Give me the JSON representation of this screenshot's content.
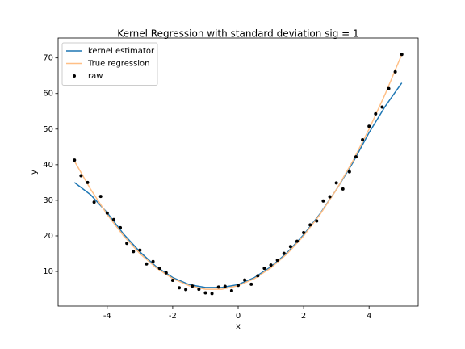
{
  "chart_data": {
    "type": "line",
    "title": "Kernel Regression with standard deviation sig = 1",
    "xlabel": "x",
    "ylabel": "y",
    "xlim": [
      -5.5,
      5.5
    ],
    "ylim": [
      0.25,
      75.6
    ],
    "xticks": [
      -4,
      -2,
      0,
      2,
      4
    ],
    "yticks": [
      10,
      20,
      30,
      40,
      50,
      60,
      70
    ],
    "legend": "upper left",
    "series": [
      {
        "name": "kernel estimator",
        "type": "line",
        "color": "#1f77b4",
        "x": [
          -5,
          -4.5,
          -4,
          -3.5,
          -3,
          -2.5,
          -2,
          -1.5,
          -1,
          -0.5,
          0,
          0.5,
          1,
          1.5,
          2,
          2.5,
          3,
          3.5,
          4,
          4.5,
          5
        ],
        "values": [
          35,
          31.5,
          26.5,
          20.5,
          15.5,
          11.3,
          8.3,
          6.3,
          5.5,
          5.5,
          6.3,
          8.3,
          11.3,
          15.3,
          20.3,
          26.2,
          33,
          40.5,
          49,
          56.5,
          63
        ]
      },
      {
        "name": "True regression",
        "type": "line",
        "color": "#ffbf86",
        "x": [
          -5,
          -4.5,
          -4,
          -3.5,
          -3,
          -2.5,
          -2,
          -1.5,
          -1,
          -0.5,
          0,
          0.5,
          1,
          1.5,
          2,
          2.5,
          3,
          3.5,
          4,
          4.5,
          5
        ],
        "values": [
          41,
          33,
          26,
          20,
          15,
          11,
          8,
          6,
          5,
          5,
          6,
          8,
          11,
          15,
          20,
          26,
          33,
          41,
          50,
          60,
          71
        ]
      },
      {
        "name": "raw",
        "type": "scatter",
        "color": "#000000",
        "x": [
          -5,
          -4.8,
          -4.6,
          -4.4,
          -4.2,
          -4,
          -3.8,
          -3.6,
          -3.4,
          -3.2,
          -3,
          -2.8,
          -2.6,
          -2.4,
          -2.2,
          -2,
          -1.8,
          -1.6,
          -1.4,
          -1.2,
          -1,
          -0.8,
          -0.6,
          -0.4,
          -0.2,
          0,
          0.2,
          0.4,
          0.6,
          0.8,
          1,
          1.2,
          1.4,
          1.6,
          1.8,
          2,
          2.2,
          2.4,
          2.6,
          2.8,
          3,
          3.2,
          3.4,
          3.6,
          3.8,
          4,
          4.2,
          4.4,
          4.6,
          4.8,
          5
        ],
        "values": [
          41.3,
          36.9,
          35,
          29.5,
          31.1,
          26.4,
          24.6,
          22.3,
          17.9,
          15.6,
          16,
          12.1,
          12.8,
          10.9,
          9.6,
          7.5,
          5.4,
          4.9,
          5.9,
          5,
          4,
          3.8,
          5.6,
          5.8,
          4.6,
          6.1,
          7.6,
          6.4,
          8.8,
          10.9,
          11.8,
          13.2,
          15.1,
          17,
          18.5,
          20.9,
          23.1,
          24.2,
          29.8,
          31,
          34.9,
          33.2,
          38,
          42.2,
          47,
          50.8,
          54.3,
          56.2,
          61.4,
          66.1,
          71
        ]
      }
    ]
  }
}
